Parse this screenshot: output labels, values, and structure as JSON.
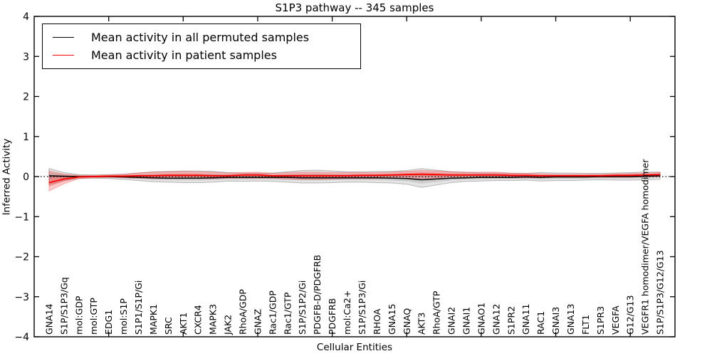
{
  "figure": {
    "title": "S1P3 pathway -- 345 samples",
    "xlabel": "Cellular Entities",
    "ylabel": "Inferred Activity"
  },
  "legend": {
    "items": [
      {
        "label": "Mean activity in all permuted samples",
        "color": "#000000"
      },
      {
        "label": "Mean activity in patient samples",
        "color": "#ff0000"
      }
    ]
  },
  "chart_data": {
    "type": "line",
    "title": "S1P3 pathway -- 345 samples",
    "xlabel": "Cellular Entities",
    "ylabel": "Inferred Activity",
    "xlim": [
      0,
      43
    ],
    "ylim": [
      -4,
      4
    ],
    "yticks": [
      -4,
      -3,
      -2,
      -1,
      0,
      1,
      2,
      3,
      4
    ],
    "xticks": [
      5,
      10,
      15,
      20,
      25,
      30,
      35,
      40
    ],
    "grid": false,
    "zero_line": "dotted",
    "legend_position": "upper left",
    "categories": [
      "GNA14",
      "S1P/S1P3/Gq",
      "mol:GDP",
      "mol:GTP",
      "EDG1",
      "mol:S1P",
      "S1P1/S1P/Gi",
      "MAPK1",
      "SRC",
      "AKT1",
      "CXCR4",
      "MAPK3",
      "JAK2",
      "RhoA/GDP",
      "GNAZ",
      "Rac1/GDP",
      "Rac1/GTP",
      "S1P/S1P2/Gi",
      "PDGFB-D/PDGFRB",
      "PDGFRB",
      "mol:Ca2+",
      "S1P/S1P3/Gi",
      "RHOA",
      "GNA15",
      "GNAQ",
      "AKT3",
      "RhoA/GTP",
      "GNAI2",
      "GNAI1",
      "GNAO1",
      "GNA12",
      "S1PR2",
      "GNA11",
      "RAC1",
      "GNAI3",
      "GNA13",
      "FLT1",
      "S1PR3",
      "VEGFA",
      "G12/G13",
      "VEGFR1 homodimer/VEGFA homodimer",
      "S1P/S1P3/G12/G13"
    ],
    "series": [
      {
        "name": "Mean activity in all permuted samples",
        "color": "#000000",
        "band_fill_opacity": 0.1,
        "values": [
          0.02,
          0.01,
          0.0,
          0.0,
          0.0,
          -0.01,
          -0.02,
          -0.03,
          -0.04,
          -0.04,
          -0.04,
          -0.03,
          -0.02,
          -0.02,
          -0.02,
          -0.02,
          -0.02,
          -0.03,
          -0.03,
          -0.03,
          -0.03,
          -0.03,
          -0.03,
          -0.04,
          -0.05,
          -0.08,
          -0.06,
          -0.04,
          -0.03,
          -0.02,
          -0.02,
          -0.02,
          -0.01,
          -0.02,
          -0.01,
          -0.01,
          -0.01,
          0.0,
          0.0,
          0.0,
          0.01,
          0.02
        ],
        "band_hi": [
          0.2,
          0.1,
          0.05,
          0.04,
          0.05,
          0.06,
          0.09,
          0.12,
          0.13,
          0.14,
          0.14,
          0.13,
          0.1,
          0.09,
          0.08,
          0.09,
          0.12,
          0.15,
          0.16,
          0.14,
          0.12,
          0.12,
          0.13,
          0.13,
          0.15,
          0.2,
          0.16,
          0.12,
          0.1,
          0.09,
          0.09,
          0.08,
          0.08,
          0.1,
          0.09,
          0.09,
          0.08,
          0.08,
          0.09,
          0.1,
          0.11,
          0.11
        ],
        "band_lo": [
          -0.2,
          -0.1,
          -0.05,
          -0.04,
          -0.05,
          -0.07,
          -0.1,
          -0.13,
          -0.14,
          -0.15,
          -0.15,
          -0.14,
          -0.11,
          -0.12,
          -0.11,
          -0.12,
          -0.14,
          -0.16,
          -0.16,
          -0.15,
          -0.14,
          -0.14,
          -0.15,
          -0.16,
          -0.19,
          -0.27,
          -0.21,
          -0.15,
          -0.12,
          -0.11,
          -0.1,
          -0.1,
          -0.09,
          -0.11,
          -0.1,
          -0.1,
          -0.09,
          -0.08,
          -0.09,
          -0.09,
          -0.08,
          -0.07
        ]
      },
      {
        "name": "Mean activity in patient samples",
        "color": "#ff0000",
        "band_fill_opacity": 0.2,
        "values": [
          -0.15,
          -0.06,
          -0.01,
          0.0,
          0.01,
          0.01,
          0.02,
          0.02,
          0.03,
          0.03,
          0.03,
          0.02,
          0.02,
          0.04,
          0.04,
          0.02,
          0.02,
          0.02,
          0.02,
          0.02,
          0.02,
          0.03,
          0.03,
          0.04,
          0.05,
          0.06,
          0.05,
          0.04,
          0.04,
          0.04,
          0.04,
          0.03,
          0.03,
          0.02,
          0.02,
          0.02,
          0.02,
          0.02,
          0.03,
          0.03,
          0.04,
          0.05
        ],
        "band_hi": [
          0.14,
          0.06,
          0.03,
          0.03,
          0.04,
          0.06,
          0.09,
          0.11,
          0.12,
          0.13,
          0.12,
          0.11,
          0.09,
          0.1,
          0.11,
          0.08,
          0.1,
          0.11,
          0.11,
          0.1,
          0.1,
          0.1,
          0.1,
          0.11,
          0.13,
          0.15,
          0.14,
          0.12,
          0.11,
          0.11,
          0.11,
          0.09,
          0.08,
          0.07,
          0.06,
          0.06,
          0.06,
          0.06,
          0.07,
          0.08,
          0.09,
          0.1
        ],
        "band_lo": [
          -0.36,
          -0.18,
          -0.05,
          -0.03,
          -0.02,
          -0.03,
          -0.04,
          -0.05,
          -0.05,
          -0.05,
          -0.05,
          -0.05,
          -0.04,
          -0.04,
          -0.04,
          -0.04,
          -0.06,
          -0.07,
          -0.07,
          -0.06,
          -0.05,
          -0.05,
          -0.05,
          -0.04,
          -0.04,
          -0.05,
          -0.04,
          -0.04,
          -0.03,
          -0.03,
          -0.03,
          -0.03,
          -0.03,
          -0.03,
          -0.02,
          -0.02,
          -0.02,
          -0.02,
          -0.02,
          -0.02,
          -0.01,
          0.0
        ]
      }
    ]
  }
}
